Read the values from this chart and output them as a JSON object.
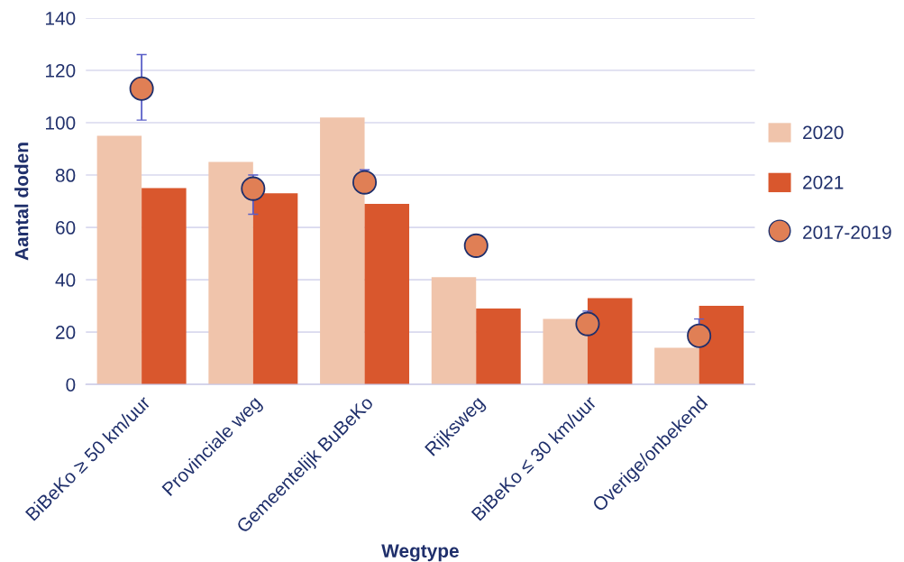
{
  "chart_data": {
    "type": "bar",
    "xlabel": "Wegtype",
    "ylabel": "Aantal doden",
    "categories": [
      "BiBeKo ≥ 50 km/uur",
      "Provinciale weg",
      "Gemeentelijk BuBeKo",
      "Rijksweg",
      "BiBeKo ≤ 30 km/uur",
      "Overige/onbekend"
    ],
    "series": [
      {
        "name": "2020",
        "color": "#f0c4ab",
        "values": [
          95,
          85,
          102,
          41,
          25,
          14
        ]
      },
      {
        "name": "2021",
        "color": "#d9572d",
        "values": [
          75,
          73,
          69,
          29,
          33,
          30
        ]
      },
      {
        "name": "2017-2019",
        "type": "scatter",
        "color": "#e07f55",
        "values": [
          113,
          74.8,
          77.2,
          53,
          23.1,
          18.6
        ],
        "errors": [
          [
            101,
            126
          ],
          [
            65,
            80
          ],
          [
            73,
            82
          ],
          null,
          [
            23.1,
            28
          ],
          [
            18.6,
            25
          ]
        ],
        "marker": "circle"
      }
    ],
    "ylim": [
      0,
      140
    ],
    "yticks": [
      0,
      20,
      40,
      60,
      80,
      100,
      120,
      140
    ],
    "grid": "y",
    "legend": "right"
  }
}
